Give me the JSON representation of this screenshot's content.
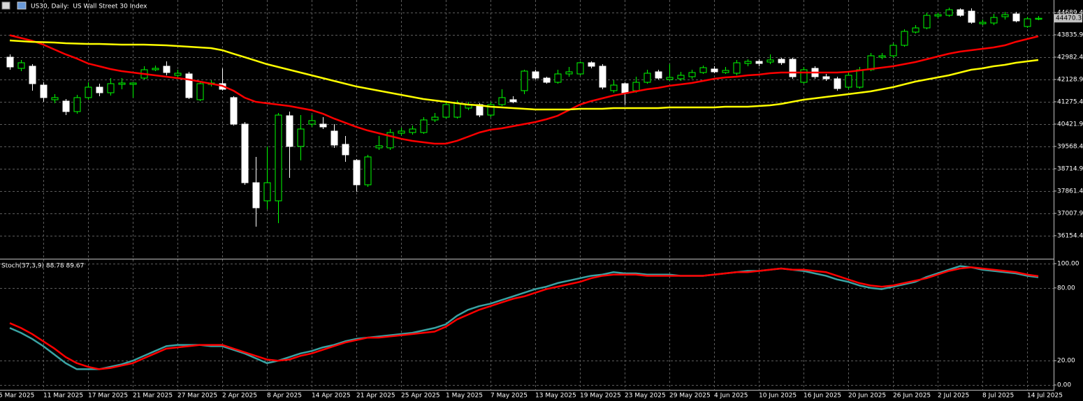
{
  "chart_data": [
    {
      "type": "candlestick",
      "title": "US30, Daily:  US Wall Street 30 Index",
      "categories": [
        "5 Mar 2025",
        null,
        null,
        null,
        "11 Mar 2025",
        null,
        null,
        null,
        "17 Mar 2025",
        null,
        null,
        null,
        "21 Mar 2025",
        null,
        null,
        null,
        "27 Mar 2025",
        null,
        null,
        null,
        "2 Apr 2025",
        null,
        null,
        null,
        "8 Apr 2025",
        null,
        null,
        null,
        "14 Apr 2025",
        null,
        null,
        null,
        "21 Apr 2025",
        null,
        null,
        null,
        "25 Apr 2025",
        null,
        null,
        null,
        "1 May 2025",
        null,
        null,
        null,
        "7 May 2025",
        null,
        null,
        null,
        "13 May 2025",
        null,
        null,
        null,
        "19 May 2025",
        null,
        null,
        null,
        "23 May 2025",
        null,
        null,
        null,
        "29 May 2025",
        null,
        null,
        null,
        "4 Jun 2025",
        null,
        null,
        null,
        "10 Jun 2025",
        null,
        null,
        null,
        "16 Jun 2025",
        null,
        null,
        null,
        "20 Jun 2025",
        null,
        null,
        null,
        "26 Jun 2025",
        null,
        null,
        null,
        "2 Jul 2025",
        null,
        null,
        null,
        "8 Jul 2025",
        null,
        null,
        null,
        "14 Jul 2025"
      ],
      "open": [
        42982,
        42555,
        42636,
        41915,
        41355,
        41302,
        40902,
        41436,
        41835,
        41622,
        41942,
        41942,
        42182,
        42502,
        42636,
        42289,
        42342,
        41355,
        41942,
        41969,
        41436,
        40422,
        38181,
        37488,
        37488,
        40742,
        39569,
        40422,
        40422,
        40155,
        39648,
        39035,
        38101,
        39515,
        39515,
        40075,
        40101,
        40101,
        40582,
        40688,
        40688,
        41035,
        41169,
        40768,
        41169,
        41355,
        41702,
        42422,
        42182,
        42022,
        42342,
        42342,
        42769,
        42636,
        41702,
        41969,
        41702,
        42022,
        42422,
        42129,
        42155,
        42235,
        42395,
        42529,
        42395,
        42369,
        42742,
        42822,
        42796,
        42902,
        42902,
        42022,
        42555,
        42235,
        42155,
        41835,
        41835,
        42502,
        42982,
        43036,
        43436,
        43942,
        44102,
        44556,
        44582,
        44796,
        44742,
        44262,
        44289,
        44529,
        44636,
        44156,
        44436
      ],
      "high": [
        43089,
        42876,
        42716,
        42022,
        41569,
        41382,
        41542,
        42022,
        41969,
        42182,
        42182,
        42022,
        42636,
        42662,
        42822,
        42502,
        42422,
        42022,
        42102,
        42555,
        41489,
        40501,
        39168,
        39569,
        40848,
        40902,
        40768,
        40768,
        40688,
        40422,
        39969,
        39088,
        39248,
        39969,
        40235,
        40288,
        40368,
        40688,
        40848,
        41302,
        41329,
        41275,
        41222,
        41275,
        41755,
        41489,
        42502,
        42502,
        42235,
        42502,
        42609,
        42822,
        42822,
        42716,
        42102,
        42022,
        42235,
        42502,
        42502,
        42716,
        42422,
        42502,
        42662,
        42636,
        42609,
        42876,
        42902,
        42902,
        43089,
        42956,
        42956,
        42609,
        42636,
        42342,
        42235,
        42395,
        42609,
        43142,
        43142,
        43516,
        44049,
        44209,
        44689,
        44689,
        44876,
        44849,
        44849,
        44422,
        44636,
        44716,
        44716,
        44529,
        44556
      ],
      "low": [
        42502,
        42449,
        41702,
        41275,
        41222,
        40769,
        40822,
        41355,
        41489,
        41515,
        41755,
        41436,
        42129,
        42449,
        42289,
        42182,
        41382,
        41302,
        41862,
        41702,
        40368,
        38101,
        36501,
        37168,
        36634,
        38368,
        39035,
        40315,
        40235,
        39515,
        38981,
        37834,
        38021,
        39435,
        39435,
        39995,
        40022,
        40048,
        40501,
        40635,
        40635,
        40955,
        40688,
        40688,
        41115,
        41222,
        41569,
        42129,
        41969,
        41969,
        42235,
        42289,
        42555,
        41755,
        41622,
        41169,
        41622,
        41969,
        42129,
        42075,
        42075,
        42155,
        42342,
        42369,
        42342,
        42289,
        42636,
        42636,
        42716,
        42689,
        42155,
        41969,
        42155,
        42075,
        41702,
        41755,
        41782,
        42449,
        42902,
        42956,
        43382,
        43889,
        44049,
        44476,
        44529,
        44529,
        44262,
        44209,
        44209,
        44422,
        44316,
        44102,
        44396
      ],
      "close": [
        42609,
        42769,
        41969,
        41436,
        41436,
        40902,
        41436,
        41835,
        41622,
        41969,
        41995,
        41995,
        42502,
        42555,
        42395,
        42369,
        41436,
        41969,
        41995,
        41755,
        40422,
        38181,
        37221,
        38181,
        40768,
        39569,
        40235,
        40555,
        40315,
        39621,
        39248,
        38101,
        39168,
        39595,
        40101,
        40155,
        40235,
        40582,
        40688,
        41169,
        41222,
        41169,
        40768,
        41169,
        41436,
        41275,
        42449,
        42182,
        42022,
        42342,
        42422,
        42769,
        42636,
        41835,
        41915,
        41595,
        42022,
        42369,
        42182,
        42209,
        42289,
        42395,
        42582,
        42422,
        42475,
        42769,
        42822,
        42742,
        42876,
        42769,
        42235,
        42502,
        42235,
        42155,
        41782,
        42289,
        42502,
        43036,
        43036,
        43436,
        43969,
        44102,
        44582,
        44609,
        44796,
        44582,
        44316,
        44316,
        44502,
        44609,
        44369,
        44449,
        44470.3
      ],
      "up_color": "#00ff00",
      "down_color": "#ffffff",
      "series": [
        {
          "color": "#ff0000",
          "values": [
            43822,
            43715,
            43609,
            43462,
            43275,
            43089,
            42929,
            42742,
            42635,
            42528,
            42448,
            42395,
            42342,
            42288,
            42235,
            42182,
            42128,
            42048,
            41968,
            41888,
            41702,
            41435,
            41275,
            41222,
            41168,
            41115,
            41035,
            40955,
            40821,
            40635,
            40475,
            40315,
            40181,
            40075,
            39968,
            39862,
            39782,
            39728,
            39675,
            39675,
            39782,
            39941,
            40101,
            40208,
            40261,
            40341,
            40421,
            40501,
            40608,
            40741,
            40955,
            41168,
            41302,
            41408,
            41515,
            41595,
            41675,
            41755,
            41808,
            41888,
            41942,
            41995,
            42075,
            42155,
            42208,
            42235,
            42288,
            42315,
            42368,
            42395,
            42395,
            42395,
            42395,
            42395,
            42395,
            42422,
            42475,
            42528,
            42582,
            42635,
            42715,
            42795,
            42902,
            43009,
            43115,
            43195,
            43249,
            43302,
            43355,
            43435,
            43569,
            43675,
            43782
          ]
        },
        {
          "color": "#ffff00",
          "values": [
            43622,
            43595,
            43569,
            43555,
            43542,
            43515,
            43502,
            43489,
            43489,
            43475,
            43462,
            43462,
            43462,
            43449,
            43435,
            43409,
            43382,
            43355,
            43329,
            43249,
            43115,
            42982,
            42849,
            42715,
            42609,
            42502,
            42395,
            42288,
            42182,
            42075,
            41968,
            41862,
            41782,
            41702,
            41622,
            41542,
            41462,
            41382,
            41328,
            41275,
            41222,
            41168,
            41142,
            41088,
            41062,
            41035,
            41008,
            40982,
            40982,
            40982,
            40982,
            41008,
            41008,
            41008,
            41035,
            41035,
            41035,
            41035,
            41035,
            41062,
            41062,
            41062,
            41062,
            41062,
            41088,
            41088,
            41088,
            41115,
            41142,
            41195,
            41275,
            41355,
            41408,
            41462,
            41515,
            41568,
            41622,
            41675,
            41755,
            41835,
            41942,
            42048,
            42128,
            42208,
            42288,
            42395,
            42502,
            42555,
            42635,
            42688,
            42768,
            42822,
            42875
          ]
        }
      ],
      "last_price": 44470.3,
      "ylim": [
        35300,
        45169
      ],
      "yticks": [
        44689.4,
        43835.9,
        42982.4,
        42128.9,
        41275.4,
        40421.9,
        39568.4,
        38714.9,
        37861.4,
        37007.9,
        36154.4
      ],
      "grid": true
    },
    {
      "type": "line",
      "title": "Stoch(37,3,9) 88.78 89.67",
      "series": [
        {
          "color": "#3aa3a3",
          "values": [
            47,
            43,
            38,
            32,
            25,
            18,
            13,
            13,
            13,
            15,
            17,
            20,
            24,
            28,
            32,
            33,
            33,
            33,
            32,
            32,
            29,
            26,
            22,
            18,
            20,
            23,
            26,
            28,
            31,
            33,
            36,
            38,
            39,
            40,
            41,
            42,
            43,
            45,
            47,
            50,
            57,
            62,
            65,
            67,
            70,
            73,
            76,
            79,
            81,
            84,
            86,
            88,
            90,
            91,
            93,
            92,
            92,
            91,
            91,
            91,
            90,
            90,
            90,
            91,
            92,
            93,
            94,
            94,
            95,
            96,
            95,
            94,
            92,
            90,
            87,
            85,
            82,
            80,
            79,
            81,
            83,
            85,
            89,
            92,
            95,
            98,
            97,
            95,
            94,
            93,
            92,
            90,
            88.78
          ]
        },
        {
          "color": "#ff0000",
          "values": [
            51,
            47,
            42,
            36,
            30,
            23,
            18,
            15,
            13,
            14,
            16,
            18,
            22,
            26,
            30,
            31,
            32,
            33,
            33,
            33,
            30,
            27,
            24,
            21,
            20,
            21,
            24,
            26,
            29,
            32,
            35,
            37,
            39,
            39,
            40,
            41,
            42,
            43,
            44,
            48,
            54,
            58,
            62,
            65,
            68,
            71,
            73,
            76,
            79,
            81,
            83,
            85,
            88,
            90,
            91,
            91,
            91,
            90,
            90,
            90,
            90,
            90,
            90,
            91,
            92,
            93,
            93,
            94,
            95,
            96,
            95,
            95,
            94,
            93,
            90,
            87,
            84,
            82,
            81,
            82,
            84,
            86,
            88,
            91,
            94,
            96,
            97,
            96,
            95,
            94,
            93,
            91,
            89.67
          ]
        }
      ],
      "ylim": [
        -4,
        102.9
      ],
      "yticks": [
        {
          "value": 100,
          "label": "100.00"
        },
        {
          "value": 80,
          "label": "80.00"
        },
        {
          "value": 20,
          "label": "20.00"
        },
        {
          "value": 0,
          "label": "0.00"
        }
      ],
      "grid": true
    }
  ]
}
